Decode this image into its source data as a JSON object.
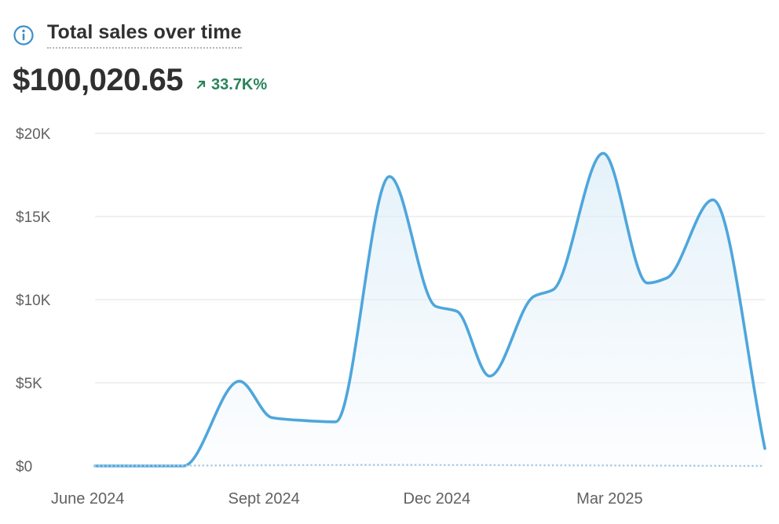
{
  "header": {
    "title": "Total sales over time",
    "total": "$100,020.65",
    "delta": "33.7K%"
  },
  "colors": {
    "line": "#4ea6dc",
    "fill_top": "#dcedf8",
    "comparison": "#a9cbe6",
    "grid": "#e8e8e8",
    "positive": "#29845a",
    "info_icon": "#3d8fc6"
  },
  "icons": {
    "info": "info-circle-icon",
    "delta": "arrow-up-right-icon"
  },
  "chart_data": {
    "type": "area",
    "title": "Total sales over time",
    "xlabel": "",
    "ylabel": "",
    "ylim": [
      0,
      20000
    ],
    "yticks": [
      0,
      5000,
      10000,
      15000,
      20000
    ],
    "ytick_labels": [
      "$0",
      "$5K",
      "$10K",
      "$15K",
      "$20K"
    ],
    "xticks": [
      {
        "date": "2024-06-01",
        "label": "June 2024"
      },
      {
        "date": "2024-09-01",
        "label": "Sept 2024"
      },
      {
        "date": "2024-12-01",
        "label": "Dec 2024"
      },
      {
        "date": "2025-03-01",
        "label": "Mar 2025"
      }
    ],
    "x_range": [
      "2024-06-01",
      "2025-05-15"
    ],
    "grid": true,
    "series": [
      {
        "points": [
          {
            "date": "2024-06-01",
            "value": 0
          },
          {
            "date": "2024-06-15",
            "value": 0
          },
          {
            "date": "2024-07-01",
            "value": 0
          },
          {
            "date": "2024-07-17",
            "value": 0
          },
          {
            "date": "2024-08-15",
            "value": 5100
          },
          {
            "date": "2024-09-01",
            "value": 2900
          },
          {
            "date": "2024-09-15",
            "value": 2750
          },
          {
            "date": "2024-10-04",
            "value": 2650
          },
          {
            "date": "2024-11-01",
            "value": 17400
          },
          {
            "date": "2024-11-25",
            "value": 9600
          },
          {
            "date": "2024-12-06",
            "value": 9300
          },
          {
            "date": "2024-12-23",
            "value": 5400
          },
          {
            "date": "2025-01-15",
            "value": 10200
          },
          {
            "date": "2025-01-25",
            "value": 10600
          },
          {
            "date": "2025-02-20",
            "value": 18800
          },
          {
            "date": "2025-03-15",
            "value": 11000
          },
          {
            "date": "2025-03-25",
            "value": 11300
          },
          {
            "date": "2025-04-18",
            "value": 16000
          },
          {
            "date": "2025-05-15",
            "value": 1050
          }
        ]
      },
      {
        "style": "dotted",
        "points": [
          {
            "date": "2024-06-01",
            "value": 0
          },
          {
            "date": "2024-11-01",
            "value": 60
          },
          {
            "date": "2025-05-15",
            "value": 0
          }
        ]
      }
    ]
  }
}
